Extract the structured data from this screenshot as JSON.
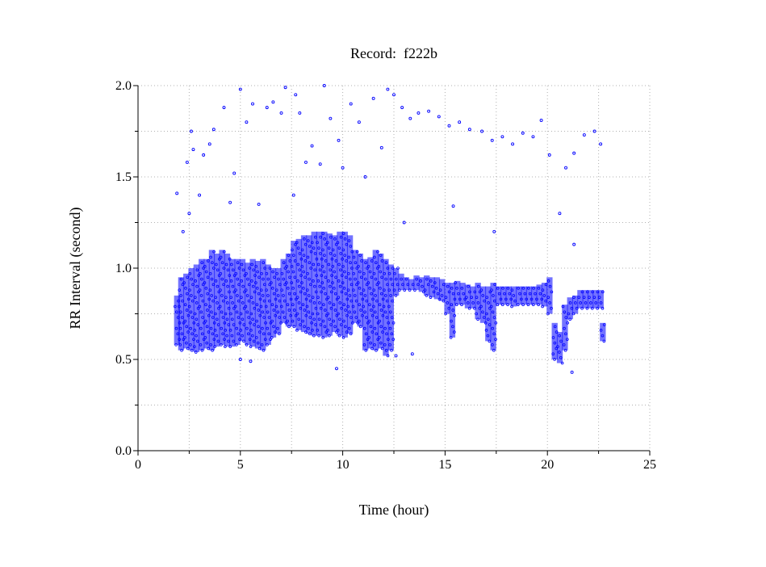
{
  "chart_data": {
    "type": "scatter",
    "title": "Record:  f222b",
    "xlabel": "Time (hour)",
    "ylabel": "RR Interval (second)",
    "xlim": [
      0,
      25
    ],
    "ylim": [
      0.0,
      2.0
    ],
    "xticks": [
      "0",
      "5",
      "10",
      "15",
      "20",
      "25"
    ],
    "yticks": [
      "0.0",
      "0.5",
      "1.0",
      "1.5",
      "2.0"
    ],
    "grid": true,
    "marker_color": "#0000ff",
    "dense_bands": [
      [
        1.8,
        0.58,
        0.85
      ],
      [
        2.0,
        0.55,
        0.95
      ],
      [
        2.25,
        0.56,
        0.97
      ],
      [
        2.5,
        0.55,
        1.0
      ],
      [
        2.75,
        0.54,
        1.02
      ],
      [
        3.0,
        0.55,
        1.05
      ],
      [
        3.25,
        0.56,
        1.05
      ],
      [
        3.5,
        0.55,
        1.1
      ],
      [
        3.75,
        0.57,
        1.08
      ],
      [
        4.0,
        0.58,
        1.1
      ],
      [
        4.25,
        0.57,
        1.08
      ],
      [
        4.5,
        0.57,
        1.05
      ],
      [
        4.75,
        0.58,
        1.05
      ],
      [
        5.0,
        0.6,
        1.05
      ],
      [
        5.25,
        0.58,
        1.03
      ],
      [
        5.5,
        0.57,
        1.05
      ],
      [
        5.75,
        0.56,
        1.04
      ],
      [
        6.0,
        0.55,
        1.05
      ],
      [
        6.25,
        0.58,
        1.02
      ],
      [
        6.5,
        0.62,
        1.0
      ],
      [
        6.75,
        0.64,
        1.0
      ],
      [
        7.0,
        0.7,
        1.05
      ],
      [
        7.25,
        0.68,
        1.08
      ],
      [
        7.5,
        0.68,
        1.15
      ],
      [
        7.75,
        0.66,
        1.16
      ],
      [
        8.0,
        0.65,
        1.18
      ],
      [
        8.25,
        0.64,
        1.18
      ],
      [
        8.5,
        0.63,
        1.2
      ],
      [
        8.75,
        0.63,
        1.2
      ],
      [
        9.0,
        0.62,
        1.2
      ],
      [
        9.25,
        0.63,
        1.19
      ],
      [
        9.5,
        0.65,
        1.18
      ],
      [
        9.75,
        0.63,
        1.2
      ],
      [
        10.0,
        0.62,
        1.2
      ],
      [
        10.25,
        0.64,
        1.18
      ],
      [
        10.5,
        0.7,
        1.1
      ],
      [
        10.75,
        0.68,
        1.08
      ],
      [
        11.0,
        0.55,
        1.05
      ],
      [
        11.25,
        0.56,
        1.06
      ],
      [
        11.5,
        0.55,
        1.1
      ],
      [
        11.75,
        0.56,
        1.08
      ],
      [
        12.0,
        0.52,
        1.05
      ],
      [
        12.25,
        0.55,
        1.02
      ],
      [
        12.5,
        0.85,
        1.0
      ],
      [
        12.75,
        0.88,
        0.97
      ],
      [
        13.0,
        0.88,
        0.95
      ],
      [
        13.25,
        0.88,
        0.94
      ],
      [
        13.5,
        0.88,
        0.96
      ],
      [
        13.75,
        0.87,
        0.95
      ],
      [
        14.0,
        0.85,
        0.96
      ],
      [
        14.25,
        0.84,
        0.95
      ],
      [
        14.5,
        0.83,
        0.95
      ],
      [
        14.75,
        0.82,
        0.94
      ],
      [
        15.0,
        0.75,
        0.92
      ],
      [
        15.25,
        0.62,
        0.92
      ],
      [
        15.5,
        0.8,
        0.93
      ],
      [
        15.75,
        0.8,
        0.92
      ],
      [
        16.0,
        0.78,
        0.91
      ],
      [
        16.25,
        0.78,
        0.9
      ],
      [
        16.5,
        0.72,
        0.92
      ],
      [
        16.75,
        0.7,
        0.9
      ],
      [
        17.0,
        0.6,
        0.9
      ],
      [
        17.25,
        0.55,
        0.92
      ],
      [
        17.5,
        0.8,
        0.9
      ],
      [
        17.75,
        0.8,
        0.9
      ],
      [
        18.0,
        0.8,
        0.9
      ],
      [
        18.25,
        0.79,
        0.9
      ],
      [
        18.5,
        0.8,
        0.9
      ],
      [
        18.75,
        0.8,
        0.9
      ],
      [
        19.0,
        0.8,
        0.9
      ],
      [
        19.25,
        0.8,
        0.9
      ],
      [
        19.5,
        0.8,
        0.91
      ],
      [
        19.75,
        0.79,
        0.92
      ],
      [
        20.0,
        0.75,
        0.95
      ],
      [
        20.25,
        0.5,
        0.7
      ],
      [
        20.5,
        0.48,
        0.65
      ],
      [
        20.75,
        0.55,
        0.8
      ],
      [
        21.0,
        0.72,
        0.84
      ],
      [
        21.25,
        0.75,
        0.85
      ],
      [
        21.5,
        0.78,
        0.88
      ],
      [
        21.75,
        0.78,
        0.88
      ],
      [
        22.0,
        0.78,
        0.88
      ],
      [
        22.25,
        0.78,
        0.88
      ],
      [
        22.5,
        0.78,
        0.88
      ],
      [
        22.6,
        0.6,
        0.7
      ]
    ],
    "outliers": [
      [
        1.9,
        1.41
      ],
      [
        2.2,
        1.2
      ],
      [
        2.4,
        1.58
      ],
      [
        2.6,
        1.75
      ],
      [
        2.7,
        1.65
      ],
      [
        3.0,
        1.4
      ],
      [
        3.2,
        1.62
      ],
      [
        3.5,
        1.68
      ],
      [
        3.7,
        1.76
      ],
      [
        4.2,
        1.88
      ],
      [
        4.5,
        1.36
      ],
      [
        4.7,
        1.52
      ],
      [
        5.0,
        1.98
      ],
      [
        5.3,
        1.8
      ],
      [
        5.6,
        1.9
      ],
      [
        5.9,
        1.35
      ],
      [
        6.3,
        1.88
      ],
      [
        6.6,
        1.91
      ],
      [
        7.0,
        1.85
      ],
      [
        7.2,
        1.99
      ],
      [
        7.7,
        1.95
      ],
      [
        7.9,
        1.85
      ],
      [
        8.2,
        1.58
      ],
      [
        8.5,
        1.67
      ],
      [
        8.9,
        1.57
      ],
      [
        9.1,
        2.0
      ],
      [
        9.4,
        1.82
      ],
      [
        9.8,
        1.7
      ],
      [
        10.0,
        1.55
      ],
      [
        10.4,
        1.9
      ],
      [
        10.8,
        1.8
      ],
      [
        11.1,
        1.5
      ],
      [
        11.5,
        1.93
      ],
      [
        11.9,
        1.66
      ],
      [
        12.2,
        1.98
      ],
      [
        12.5,
        1.95
      ],
      [
        12.9,
        1.88
      ],
      [
        13.3,
        1.82
      ],
      [
        13.7,
        1.85
      ],
      [
        14.2,
        1.86
      ],
      [
        14.7,
        1.83
      ],
      [
        15.2,
        1.78
      ],
      [
        15.7,
        1.8
      ],
      [
        16.2,
        1.76
      ],
      [
        16.8,
        1.75
      ],
      [
        17.3,
        1.7
      ],
      [
        17.8,
        1.72
      ],
      [
        18.3,
        1.68
      ],
      [
        18.8,
        1.74
      ],
      [
        19.3,
        1.72
      ],
      [
        19.7,
        1.81
      ],
      [
        20.1,
        1.62
      ],
      [
        20.6,
        1.3
      ],
      [
        20.9,
        1.55
      ],
      [
        21.3,
        1.63
      ],
      [
        21.8,
        1.73
      ],
      [
        22.3,
        1.75
      ],
      [
        22.6,
        1.68
      ],
      [
        15.4,
        1.34
      ],
      [
        13.0,
        1.25
      ],
      [
        17.4,
        1.2
      ],
      [
        21.3,
        1.13
      ],
      [
        5.0,
        0.5
      ],
      [
        5.5,
        0.49
      ],
      [
        9.7,
        0.45
      ],
      [
        12.6,
        0.52
      ],
      [
        13.4,
        0.53
      ],
      [
        21.2,
        0.43
      ],
      [
        7.6,
        1.4
      ],
      [
        2.5,
        1.3
      ]
    ]
  }
}
